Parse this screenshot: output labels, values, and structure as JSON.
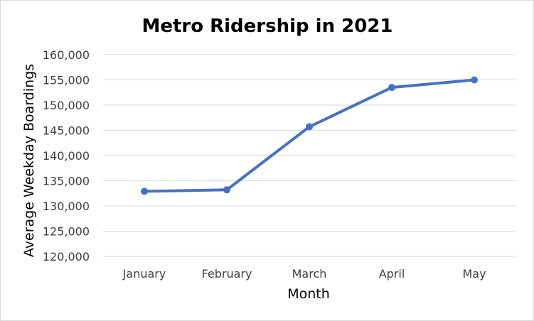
{
  "chart_data": {
    "type": "line",
    "title": "Metro Ridership in 2021",
    "xlabel": "Month",
    "ylabel": "Average Weekday Boardings",
    "categories": [
      "January",
      "February",
      "March",
      "April",
      "May"
    ],
    "series": [
      {
        "values": [
          132900,
          133200,
          145700,
          153500,
          155000
        ]
      }
    ],
    "ylim": [
      120000,
      160000
    ],
    "yticks": [
      120000,
      125000,
      130000,
      135000,
      140000,
      145000,
      150000,
      155000,
      160000
    ],
    "ytick_labels": [
      "120,000",
      "125,000",
      "130,000",
      "135,000",
      "140,000",
      "145,000",
      "150,000",
      "155,000",
      "160,000"
    ],
    "grid": true,
    "legend": "none",
    "colors": {
      "line": "#4472c4",
      "grid": "#d9d9d9"
    }
  }
}
